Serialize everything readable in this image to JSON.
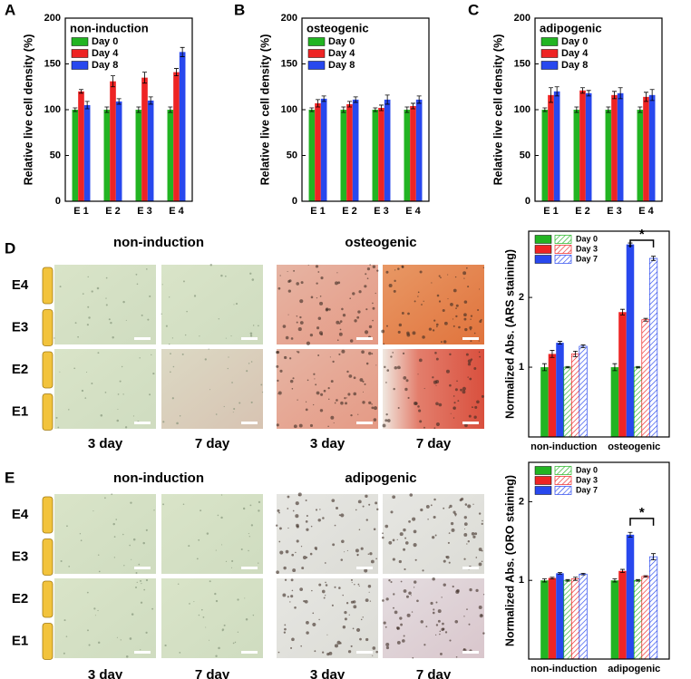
{
  "chart_data": [
    {
      "type": "bar",
      "panel": "A",
      "title": "non-induction",
      "y_label": "Relative live cell density (%)",
      "categories": [
        "E 1",
        "E 2",
        "E 3",
        "E 4"
      ],
      "series": [
        {
          "name": "Day 0",
          "color": "#22b422",
          "values": [
            100,
            100,
            100,
            100
          ],
          "errors": [
            2,
            3,
            3,
            3
          ]
        },
        {
          "name": "Day 4",
          "color": "#ee2424",
          "values": [
            120,
            131,
            135,
            141
          ],
          "errors": [
            2,
            6,
            6,
            4
          ]
        },
        {
          "name": "Day 8",
          "color": "#2848ee",
          "values": [
            105,
            109,
            110,
            163
          ],
          "errors": [
            4,
            3,
            4,
            5
          ]
        }
      ],
      "ylim": [
        0,
        200
      ],
      "yticks": [
        0,
        50,
        100,
        150,
        200
      ]
    },
    {
      "type": "bar",
      "panel": "B",
      "title": "osteogenic",
      "y_label": "Relative live cell density (%)",
      "categories": [
        "E 1",
        "E 2",
        "E 3",
        "E 4"
      ],
      "series": [
        {
          "name": "Day 0",
          "color": "#22b422",
          "values": [
            100,
            100,
            100,
            100
          ],
          "errors": [
            2,
            3,
            2,
            3
          ]
        },
        {
          "name": "Day 4",
          "color": "#ee2424",
          "values": [
            107,
            106,
            102,
            104
          ],
          "errors": [
            4,
            3,
            3,
            3
          ]
        },
        {
          "name": "Day 8",
          "color": "#2848ee",
          "values": [
            112,
            111,
            111,
            111
          ],
          "errors": [
            3,
            3,
            5,
            4
          ]
        }
      ],
      "ylim": [
        0,
        200
      ],
      "yticks": [
        0,
        50,
        100,
        150,
        200
      ]
    },
    {
      "type": "bar",
      "panel": "C",
      "title": "adipogenic",
      "y_label": "Relative live cell density (%)",
      "categories": [
        "E 1",
        "E 2",
        "E 3",
        "E 4"
      ],
      "series": [
        {
          "name": "Day 0",
          "color": "#22b422",
          "values": [
            100,
            100,
            100,
            100
          ],
          "errors": [
            2,
            3,
            3,
            3
          ]
        },
        {
          "name": "Day 4",
          "color": "#ee2424",
          "values": [
            116,
            121,
            116,
            114
          ],
          "errors": [
            8,
            3,
            4,
            5
          ]
        },
        {
          "name": "Day 8",
          "color": "#2848ee",
          "values": [
            120,
            118,
            118,
            116
          ],
          "errors": [
            5,
            3,
            6,
            6
          ]
        }
      ],
      "ylim": [
        0,
        200
      ],
      "yticks": [
        0,
        50,
        100,
        150,
        200
      ]
    },
    {
      "type": "bar",
      "y_label": "Normalized Abs. (ARS staining)",
      "annotation": "*",
      "categories": [
        "non-induction",
        "osteogenic"
      ],
      "series": [
        {
          "name": "Day 0",
          "color": "#22b422",
          "values": [
            1.0,
            1.0
          ],
          "errors": [
            0.05,
            0.05
          ]
        },
        {
          "name": "Day 3",
          "color": "#ee2424",
          "values": [
            1.19,
            1.79
          ],
          "errors": [
            0.05,
            0.04
          ]
        },
        {
          "name": "Day 7",
          "color": "#2848ee",
          "values": [
            1.35,
            2.76
          ],
          "errors": [
            0.02,
            0.02
          ]
        },
        {
          "color": "#22b422",
          "hatch": true,
          "values": [
            1.0,
            1.0
          ],
          "errors": [
            0.01,
            0.01
          ]
        },
        {
          "color": "#ee2424",
          "hatch": true,
          "values": [
            1.19,
            1.68
          ],
          "errors": [
            0.04,
            0.02
          ]
        },
        {
          "color": "#2848ee",
          "hatch": true,
          "values": [
            1.3,
            2.56
          ],
          "errors": [
            0.02,
            0.03
          ]
        }
      ],
      "ylim": [
        0,
        2.95
      ],
      "yticks": [
        1,
        2
      ]
    },
    {
      "type": "bar",
      "y_label": "Normalized Abs. (ORO staining)",
      "annotation": "*",
      "categories": [
        "non-induction",
        "adipogenic"
      ],
      "series": [
        {
          "name": "Day 0",
          "color": "#22b422",
          "values": [
            1.0,
            1.0
          ],
          "errors": [
            0.02,
            0.02
          ]
        },
        {
          "name": "Day 3",
          "color": "#ee2424",
          "values": [
            1.03,
            1.12
          ],
          "errors": [
            0.01,
            0.02
          ]
        },
        {
          "name": "Day 7",
          "color": "#2848ee",
          "values": [
            1.09,
            1.58
          ],
          "errors": [
            0.01,
            0.03
          ]
        },
        {
          "color": "#22b422",
          "hatch": true,
          "values": [
            1.0,
            1.0
          ],
          "errors": [
            0.01,
            0.01
          ]
        },
        {
          "color": "#ee2424",
          "hatch": true,
          "values": [
            1.02,
            1.05
          ],
          "errors": [
            0.02,
            0.01
          ]
        },
        {
          "color": "#2848ee",
          "hatch": true,
          "values": [
            1.08,
            1.3
          ],
          "errors": [
            0.01,
            0.04
          ]
        }
      ],
      "ylim": [
        0,
        2.5
      ],
      "yticks": [
        1,
        2
      ]
    }
  ],
  "micrographs": [
    {
      "panel": "D",
      "groups": [
        "non-induction",
        "osteogenic"
      ],
      "days": [
        "3 day",
        "7 day",
        "3 day",
        "7 day"
      ],
      "electrodes": [
        "E4",
        "E3",
        "E2",
        "E1"
      ]
    },
    {
      "panel": "E",
      "groups": [
        "non-induction",
        "adipogenic"
      ],
      "days": [
        "3 day",
        "7 day",
        "3 day",
        "7 day"
      ],
      "electrodes": [
        "E4",
        "E3",
        "E2",
        "E1"
      ]
    }
  ]
}
